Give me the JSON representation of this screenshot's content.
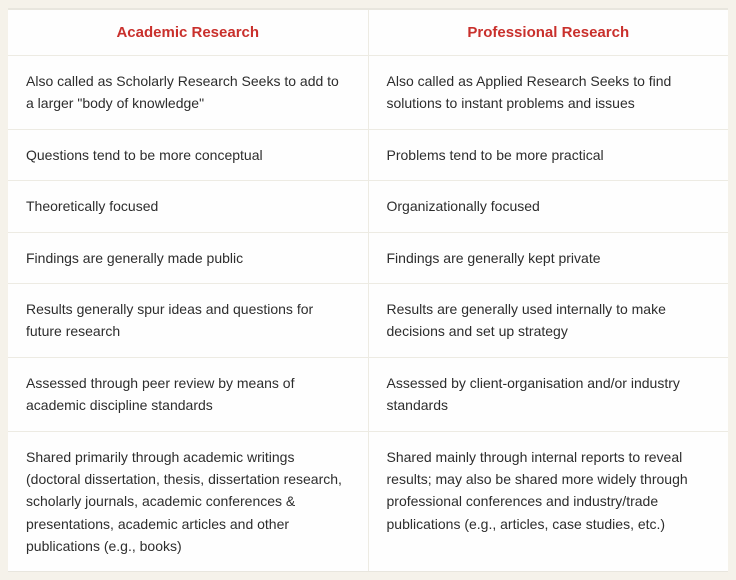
{
  "table": {
    "headers": {
      "left": "Academic Research",
      "right": "Professional Research"
    },
    "header_color": "#c9302c",
    "text_color": "#2d2d2d",
    "background_color": "#fefefe",
    "page_background": "#f5f2ea",
    "border_color": "#edebe3",
    "header_fontsize": 15,
    "cell_fontsize": 14,
    "rows": [
      {
        "left": "Also called as Scholarly Research Seeks to add to a larger \"body of knowledge\"",
        "right": "Also called as Applied Research Seeks to find solutions to instant problems and issues"
      },
      {
        "left": "Questions tend to be more conceptual",
        "right": "Problems tend to be more practical"
      },
      {
        "left": "Theoretically focused",
        "right": "Organizationally focused"
      },
      {
        "left": "Findings are generally made public",
        "right": "Findings are generally kept private"
      },
      {
        "left": "Results generally spur ideas and questions for future research",
        "right": "Results are generally used internally to make decisions and set up strategy"
      },
      {
        "left": "Assessed through peer review by means of academic discipline standards",
        "right": "Assessed by client-organisation and/or industry standards"
      },
      {
        "left": "Shared primarily through academic writings (doctoral dissertation, thesis, dissertation research, scholarly journals, academic conferences & presentations, academic articles and other publications (e.g., books)",
        "right": "Shared mainly through internal reports to reveal results; may also be shared more widely through professional conferences and industry/trade publications (e.g., articles, case studies, etc.)"
      }
    ]
  }
}
